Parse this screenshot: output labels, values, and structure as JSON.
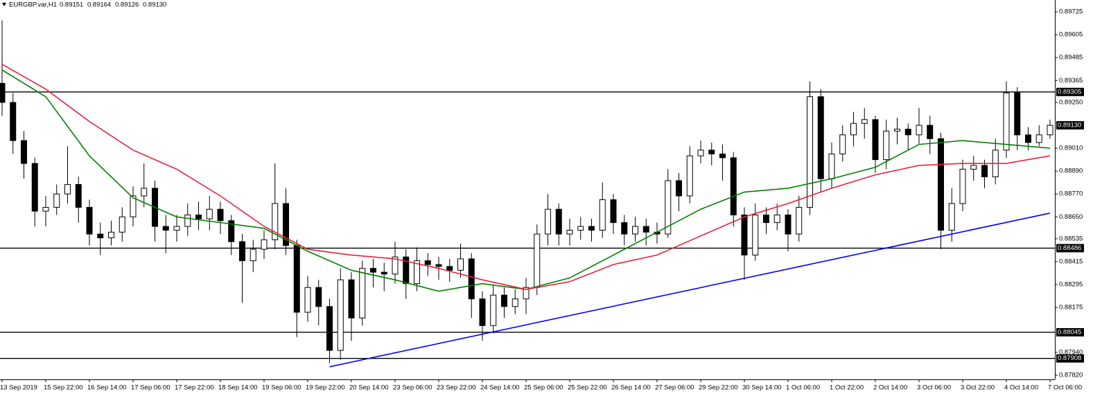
{
  "chart_data": {
    "type": "candlestick",
    "title": "EURGBP.var,H1",
    "header_values": [
      "0.89151",
      "0.89164",
      "0.89126",
      "0.89130"
    ],
    "categories": [
      "13 Sep 2019",
      null,
      null,
      null,
      "15 Sep 22:00",
      null,
      null,
      null,
      "16 Sep 14:00",
      null,
      null,
      null,
      "17 Sep 06:00",
      null,
      null,
      null,
      "17 Sep 22:00",
      null,
      null,
      null,
      "18 Sep 14:00",
      null,
      null,
      null,
      "19 Sep 06:00",
      null,
      null,
      null,
      "19 Sep 22:00",
      null,
      null,
      null,
      "20 Sep 14:00",
      null,
      null,
      null,
      "23 Sep 06:00",
      null,
      null,
      null,
      "23 Sep 22:00",
      null,
      null,
      null,
      "24 Sep 14:00",
      null,
      null,
      null,
      "25 Sep 06:00",
      null,
      null,
      null,
      "25 Sep 22:00",
      null,
      null,
      null,
      "26 Sep 14:00",
      null,
      null,
      null,
      "27 Sep 06:00",
      null,
      null,
      null,
      "29 Sep 22:00",
      null,
      null,
      null,
      "30 Sep 14:00",
      null,
      null,
      null,
      "1 Oct 06:00",
      null,
      null,
      null,
      "1 Oct 22:00",
      null,
      null,
      null,
      "2 Oct 14:00",
      null,
      null,
      null,
      "3 Oct 06:00",
      null,
      null,
      null,
      "3 Oct 22:00",
      null,
      null,
      null,
      "4 Oct 14:00",
      null,
      null,
      null,
      "7 Oct 06:00"
    ],
    "open": [
      0.8935,
      0.8925,
      0.8905,
      0.8893,
      0.8868,
      0.887,
      0.8877,
      0.8882,
      0.887,
      0.8856,
      0.8854,
      0.8857,
      0.8865,
      0.8876,
      0.888,
      0.886,
      0.8858,
      0.886,
      0.8866,
      0.8864,
      0.8869,
      0.8863,
      0.8852,
      0.8842,
      0.8848,
      0.8853,
      0.8872,
      0.885,
      0.8815,
      0.8828,
      0.8818,
      0.8795,
      0.8832,
      0.8812,
      0.8838,
      0.8836,
      0.8835,
      0.8844,
      0.883,
      0.8842,
      0.884,
      0.8839,
      0.8837,
      0.8843,
      0.8822,
      0.8808,
      0.8824,
      0.8818,
      0.8822,
      0.8828,
      0.8856,
      0.8869,
      0.8856,
      0.8858,
      0.886,
      0.8858,
      0.8874,
      0.8862,
      0.8856,
      0.886,
      0.8857,
      0.8856,
      0.8884,
      0.8876,
      0.8897,
      0.89,
      0.8898,
      0.8896,
      0.8866,
      0.8845,
      0.8866,
      0.8862,
      0.8866,
      0.8856,
      0.887,
      0.8928,
      0.8885,
      0.8898,
      0.8908,
      0.8914,
      0.8916,
      0.8895,
      0.891,
      0.8911,
      0.8908,
      0.8913,
      0.8906,
      0.8858,
      0.8872,
      0.889,
      0.8892,
      0.8886,
      0.89,
      0.893,
      0.8908,
      0.8904,
      0.8908
    ],
    "high": [
      0.8968,
      0.893,
      0.891,
      0.8896,
      0.8876,
      0.8882,
      0.8902,
      0.8886,
      0.8874,
      0.8862,
      0.8863,
      0.887,
      0.8881,
      0.8893,
      0.8884,
      0.8866,
      0.8866,
      0.8872,
      0.8873,
      0.8876,
      0.8873,
      0.8866,
      0.8856,
      0.8853,
      0.8858,
      0.8893,
      0.888,
      0.8853,
      0.8834,
      0.8832,
      0.8822,
      0.8838,
      0.8836,
      0.8842,
      0.8843,
      0.8841,
      0.8852,
      0.8848,
      0.8849,
      0.8846,
      0.8844,
      0.8843,
      0.8851,
      0.8846,
      0.8826,
      0.8829,
      0.8828,
      0.8827,
      0.8833,
      0.8861,
      0.8877,
      0.8872,
      0.8864,
      0.8865,
      0.8864,
      0.8883,
      0.8877,
      0.8866,
      0.8865,
      0.8864,
      0.8862,
      0.889,
      0.8888,
      0.8902,
      0.8905,
      0.8904,
      0.8903,
      0.8899,
      0.887,
      0.8872,
      0.887,
      0.8872,
      0.8869,
      0.8876,
      0.8936,
      0.8932,
      0.8904,
      0.8913,
      0.892,
      0.8922,
      0.8918,
      0.8916,
      0.8917,
      0.8914,
      0.8922,
      0.8918,
      0.8909,
      0.888,
      0.8895,
      0.8897,
      0.8895,
      0.8906,
      0.8936,
      0.8933,
      0.8912,
      0.8913,
      0.8916
    ],
    "low": [
      0.8918,
      0.8898,
      0.8885,
      0.886,
      0.886,
      0.8866,
      0.8872,
      0.8862,
      0.885,
      0.8845,
      0.885,
      0.8852,
      0.886,
      0.887,
      0.8852,
      0.8846,
      0.8852,
      0.8855,
      0.8858,
      0.8858,
      0.8856,
      0.8845,
      0.882,
      0.8836,
      0.8843,
      0.8848,
      0.8845,
      0.8802,
      0.881,
      0.8808,
      0.87885,
      0.879,
      0.88,
      0.8808,
      0.8828,
      0.8826,
      0.883,
      0.8822,
      0.8826,
      0.8834,
      0.8832,
      0.8831,
      0.8833,
      0.8812,
      0.88,
      0.8804,
      0.8812,
      0.8814,
      0.8814,
      0.8824,
      0.885,
      0.885,
      0.885,
      0.8853,
      0.8852,
      0.8854,
      0.8856,
      0.885,
      0.8852,
      0.885,
      0.8851,
      0.8854,
      0.8868,
      0.8872,
      0.8893,
      0.8892,
      0.8884,
      0.886,
      0.8832,
      0.8842,
      0.8856,
      0.8858,
      0.8847,
      0.8852,
      0.8866,
      0.8878,
      0.888,
      0.8894,
      0.8902,
      0.8906,
      0.8888,
      0.889,
      0.8903,
      0.89,
      0.8903,
      0.8898,
      0.8848,
      0.8852,
      0.8868,
      0.8884,
      0.888,
      0.8882,
      0.8896,
      0.89,
      0.89,
      0.8902,
      0.8906
    ],
    "close": [
      0.8925,
      0.8905,
      0.8893,
      0.8868,
      0.887,
      0.8877,
      0.8882,
      0.887,
      0.8856,
      0.8854,
      0.8857,
      0.8865,
      0.8876,
      0.888,
      0.886,
      0.8858,
      0.886,
      0.8866,
      0.8864,
      0.8869,
      0.8863,
      0.8852,
      0.8842,
      0.8848,
      0.8853,
      0.8872,
      0.885,
      0.8815,
      0.8828,
      0.8818,
      0.8795,
      0.8832,
      0.8812,
      0.8838,
      0.8836,
      0.8835,
      0.8844,
      0.883,
      0.8842,
      0.884,
      0.8839,
      0.8837,
      0.8843,
      0.8822,
      0.8808,
      0.8824,
      0.8818,
      0.8822,
      0.8828,
      0.8856,
      0.8869,
      0.8856,
      0.8858,
      0.886,
      0.8858,
      0.8874,
      0.8862,
      0.8856,
      0.886,
      0.8857,
      0.8856,
      0.8884,
      0.8876,
      0.8897,
      0.89,
      0.8898,
      0.8896,
      0.8866,
      0.8845,
      0.8866,
      0.8862,
      0.8866,
      0.8856,
      0.887,
      0.8928,
      0.8885,
      0.8898,
      0.8908,
      0.8914,
      0.8916,
      0.8895,
      0.891,
      0.8911,
      0.8908,
      0.8913,
      0.8906,
      0.8858,
      0.8872,
      0.889,
      0.8892,
      0.8886,
      0.89,
      0.893,
      0.8908,
      0.8904,
      0.8908,
      0.8913
    ],
    "up_color": "#ffffff",
    "down_color": "#000000",
    "wick_color": "#000000",
    "overlays": [
      {
        "color": "#008000",
        "x": [
          0,
          4,
          8,
          12,
          16,
          20,
          24,
          28,
          32,
          36,
          40,
          44,
          48,
          52,
          56,
          60,
          64,
          68,
          72,
          76,
          80,
          84,
          88,
          92,
          96
        ],
        "values": [
          0.8942,
          0.8928,
          0.8897,
          0.8875,
          0.8865,
          0.8862,
          0.8859,
          0.8847,
          0.8837,
          0.8832,
          0.8826,
          0.883,
          0.8827,
          0.8833,
          0.8845,
          0.8857,
          0.8869,
          0.8878,
          0.888,
          0.8885,
          0.8891,
          0.8903,
          0.8905,
          0.8903,
          0.8901
        ]
      },
      {
        "color": "#e8203a",
        "x": [
          0,
          4,
          8,
          12,
          16,
          20,
          24,
          28,
          32,
          36,
          40,
          44,
          48,
          52,
          56,
          60,
          64,
          68,
          72,
          76,
          80,
          84,
          88,
          92,
          96
        ],
        "values": [
          0.8945,
          0.8932,
          0.8915,
          0.89,
          0.889,
          0.8876,
          0.886,
          0.8848,
          0.8845,
          0.8843,
          0.8838,
          0.8832,
          0.8827,
          0.8831,
          0.884,
          0.8845,
          0.8855,
          0.8865,
          0.8872,
          0.888,
          0.8887,
          0.8892,
          0.8893,
          0.8893,
          0.8897
        ]
      },
      {
        "color": "#0000ff",
        "x": [
          30,
          96
        ],
        "values": [
          0.87864,
          0.8867
        ]
      }
    ],
    "levels": [
      0.89305,
      0.88486,
      0.88045,
      0.87908
    ],
    "current_price": {
      "value": 0.8913,
      "label": "0.89130"
    },
    "ylim": [
      0.87798,
      0.89787
    ],
    "yticks": [
      0.89725,
      0.89605,
      0.89485,
      0.89365,
      {
        "value": 0.8925,
        "label": "0.89250"
      },
      {
        "value": 0.8901,
        "label": "0.89010"
      },
      {
        "value": 0.8889,
        "label": "0.88890"
      },
      {
        "value": 0.8877,
        "label": "0.88770"
      },
      {
        "value": 0.8865,
        "label": "0.88650"
      },
      0.88535,
      0.88415,
      0.88295,
      0.88175,
      {
        "value": 0.8794,
        "label": "0.87940"
      },
      {
        "value": 0.8782,
        "label": "0.87820"
      }
    ]
  }
}
